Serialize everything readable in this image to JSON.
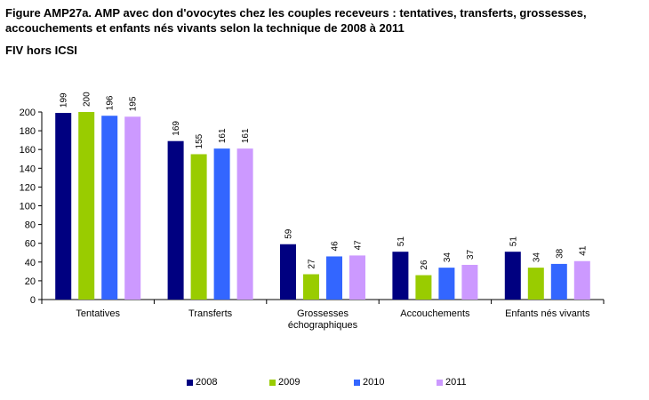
{
  "title": "Figure AMP27a. AMP avec don d'ovocytes chez les couples receveurs : tentatives, transferts, grossesses, accouchements et enfants nés vivants selon la technique de 2008 à 2011",
  "subtitle": "FIV hors ICSI",
  "chart_data": {
    "type": "bar",
    "categories": [
      [
        "Tentatives"
      ],
      [
        "Transferts"
      ],
      [
        "Grossesses",
        "échographiques"
      ],
      [
        "Accouchements"
      ],
      [
        "Enfants nés vivants"
      ]
    ],
    "series": [
      {
        "name": "2008",
        "color": "#000080",
        "values": [
          199,
          169,
          59,
          51,
          51
        ]
      },
      {
        "name": "2009",
        "color": "#99CC00",
        "values": [
          200,
          155,
          27,
          26,
          34
        ]
      },
      {
        "name": "2010",
        "color": "#3366FF",
        "values": [
          196,
          161,
          46,
          34,
          38
        ]
      },
      {
        "name": "2011",
        "color": "#CC99FF",
        "values": [
          195,
          161,
          47,
          37,
          41
        ]
      }
    ],
    "ylim": [
      0,
      200
    ],
    "yticks": [
      0,
      20,
      40,
      60,
      80,
      100,
      120,
      140,
      160,
      180,
      200
    ],
    "grid": false,
    "legend": "bottom"
  }
}
